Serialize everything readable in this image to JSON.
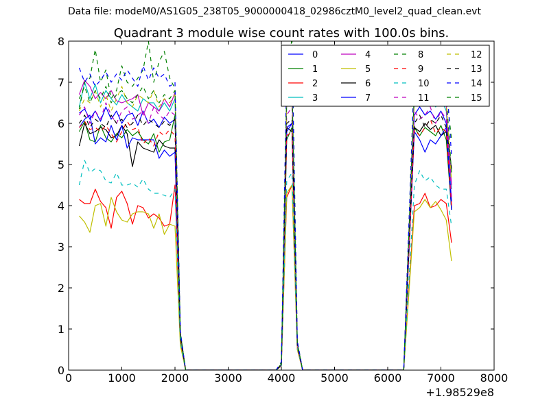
{
  "figure": {
    "suptitle": "Data file: modeM0/AS1G05_238T05_9000000418_02986cztM0_level2_quad_clean.evt"
  },
  "chart_data": {
    "type": "line",
    "title": "Quadrant 3 module wise count rates with 100.0s bins.",
    "xlabel": "",
    "ylabel": "",
    "x_offset_label": "+1.98529e8",
    "xlim": [
      0,
      8000
    ],
    "ylim": [
      0,
      8
    ],
    "xticks": [
      "0",
      "1000",
      "2000",
      "3000",
      "4000",
      "5000",
      "6000",
      "7000",
      "8000"
    ],
    "yticks": [
      "0",
      "1",
      "2",
      "3",
      "4",
      "5",
      "6",
      "7",
      "8"
    ],
    "grid": false,
    "legend": {
      "placement": "top-right",
      "columns": 4
    },
    "x": [
      200,
      300,
      400,
      500,
      600,
      700,
      800,
      900,
      1000,
      1100,
      1200,
      1300,
      1400,
      1500,
      1600,
      1700,
      1800,
      1900,
      2000,
      2100,
      2200,
      2300,
      2400,
      2500,
      2600,
      2700,
      2800,
      2900,
      3000,
      3100,
      3200,
      3300,
      3400,
      3500,
      3600,
      3700,
      3800,
      3900,
      4000,
      4100,
      4200,
      4300,
      4400,
      4500,
      4600,
      4700,
      4800,
      4900,
      5000,
      5100,
      5200,
      5300,
      5400,
      5500,
      5600,
      5700,
      5800,
      5900,
      6000,
      6100,
      6200,
      6300,
      6400,
      6500,
      6600,
      6700,
      6800,
      6900,
      7000,
      7100,
      7200
    ],
    "series": [
      {
        "name": "0",
        "color": "#0000ff",
        "dash": "solid",
        "values": [
          6.25,
          6.35,
          6.1,
          6.3,
          6.05,
          6.4,
          6.1,
          6.3,
          6.0,
          6.2,
          6.25,
          5.95,
          6.3,
          6.0,
          6.1,
          5.9,
          6.15,
          6.0,
          6.1,
          0.8,
          0,
          0,
          0,
          0,
          0,
          0,
          0,
          0,
          0,
          0,
          0,
          0,
          0,
          0,
          0,
          0,
          0,
          0,
          0.15,
          5.9,
          6.0,
          0.6,
          0,
          0,
          0,
          0,
          0,
          0,
          0,
          0,
          0,
          0,
          0,
          0,
          0,
          0,
          0,
          0,
          0,
          0,
          0,
          0,
          3.0,
          6.2,
          6.4,
          6.2,
          6.3,
          6.1,
          6.3,
          6.0,
          4.1
        ]
      },
      {
        "name": "1",
        "color": "#008000",
        "dash": "solid",
        "values": [
          5.8,
          6.05,
          5.6,
          5.55,
          5.95,
          5.65,
          5.55,
          5.75,
          5.65,
          5.85,
          5.7,
          5.8,
          5.6,
          5.5,
          5.75,
          5.3,
          5.55,
          5.6,
          6.2,
          0.9,
          0,
          0,
          0,
          0,
          0,
          0,
          0,
          0,
          0,
          0,
          0,
          0,
          0,
          0,
          0,
          0,
          0,
          0,
          0.12,
          5.6,
          5.9,
          0.6,
          0,
          0,
          0,
          0,
          0,
          0,
          0,
          0,
          0,
          0,
          0,
          0,
          0,
          0,
          0,
          0,
          0,
          0,
          0,
          0,
          2.9,
          5.9,
          5.7,
          5.9,
          5.8,
          5.7,
          5.95,
          5.6,
          3.9
        ]
      },
      {
        "name": "2",
        "color": "#ff0000",
        "dash": "solid",
        "values": [
          4.15,
          4.05,
          4.05,
          4.4,
          4.1,
          3.95,
          3.45,
          4.2,
          4.35,
          4.05,
          3.55,
          4.0,
          3.95,
          3.7,
          3.8,
          3.7,
          3.5,
          3.55,
          4.5,
          0.7,
          0,
          0,
          0,
          0,
          0,
          0,
          0,
          0,
          0,
          0,
          0,
          0,
          0,
          0,
          0,
          0,
          0,
          0,
          0.1,
          4.2,
          4.5,
          0.5,
          0,
          0,
          0,
          0,
          0,
          0,
          0,
          0,
          0,
          0,
          0,
          0,
          0,
          0,
          0,
          0,
          0,
          0,
          0,
          0,
          2.0,
          4.0,
          4.05,
          4.3,
          3.95,
          4.0,
          4.15,
          4.05,
          3.1
        ]
      },
      {
        "name": "3",
        "color": "#00bfbf",
        "dash": "solid",
        "values": [
          6.4,
          7.0,
          6.6,
          6.95,
          6.5,
          6.8,
          6.6,
          6.45,
          6.7,
          6.5,
          6.4,
          6.3,
          6.6,
          6.5,
          6.5,
          6.3,
          6.5,
          6.3,
          6.6,
          0.9,
          0,
          0,
          0,
          0,
          0,
          0,
          0,
          0,
          0,
          0,
          0,
          0,
          0,
          0,
          0,
          0,
          0,
          0,
          0.15,
          6.5,
          6.7,
          0.65,
          0,
          0,
          0,
          0,
          0,
          0,
          0,
          0,
          0,
          0,
          0,
          0,
          0,
          0,
          0,
          0,
          0,
          0,
          0,
          0,
          3.3,
          6.6,
          6.8,
          6.5,
          6.6,
          6.4,
          6.6,
          6.3,
          4.4
        ]
      },
      {
        "name": "4",
        "color": "#bf00bf",
        "dash": "solid",
        "values": [
          6.7,
          7.05,
          6.9,
          6.6,
          6.75,
          6.6,
          6.8,
          6.55,
          6.5,
          6.55,
          6.6,
          6.7,
          6.2,
          6.5,
          6.4,
          6.3,
          6.6,
          6.4,
          6.75,
          0.9,
          0,
          0,
          0,
          0,
          0,
          0,
          0,
          0,
          0,
          0,
          0,
          0,
          0,
          0,
          0,
          0,
          0,
          0,
          0.15,
          6.6,
          6.8,
          0.65,
          0,
          0,
          0,
          0,
          0,
          0,
          0,
          0,
          0,
          0,
          0,
          0,
          0,
          0,
          0,
          0,
          0,
          0,
          0,
          0,
          3.4,
          6.7,
          6.6,
          6.8,
          6.6,
          6.5,
          6.7,
          6.4,
          4.5
        ]
      },
      {
        "name": "5",
        "color": "#bfbf00",
        "dash": "solid",
        "values": [
          3.75,
          3.6,
          3.35,
          4.0,
          4.05,
          3.5,
          4.2,
          3.85,
          3.65,
          3.6,
          3.8,
          3.85,
          3.85,
          3.8,
          3.45,
          3.8,
          3.3,
          3.55,
          3.5,
          0.6,
          0,
          0,
          0,
          0,
          0,
          0,
          0,
          0,
          0,
          0,
          0,
          0,
          0,
          0,
          0,
          0,
          0,
          0,
          0.1,
          4.3,
          4.5,
          0.5,
          0,
          0,
          0,
          0,
          0,
          0,
          0,
          0,
          0,
          0,
          0,
          0,
          0,
          0,
          0,
          0,
          0,
          0,
          0,
          0,
          1.9,
          3.85,
          3.95,
          4.15,
          3.95,
          4.1,
          3.9,
          3.65,
          2.65
        ]
      },
      {
        "name": "6",
        "color": "#000000",
        "dash": "solid",
        "values": [
          5.45,
          6.0,
          5.75,
          5.8,
          5.9,
          5.85,
          5.65,
          5.7,
          5.95,
          5.75,
          4.95,
          5.55,
          5.4,
          5.35,
          5.3,
          5.6,
          5.45,
          5.4,
          5.4,
          0.8,
          0,
          0,
          0,
          0,
          0,
          0,
          0,
          0,
          0,
          0,
          0,
          0,
          0,
          0,
          0,
          0,
          0,
          0,
          0.12,
          5.9,
          5.8,
          0.6,
          0,
          0,
          0,
          0,
          0,
          0,
          0,
          0,
          0,
          0,
          0,
          0,
          0,
          0,
          0,
          0,
          0,
          0,
          0,
          0,
          3.0,
          5.9,
          5.8,
          6.0,
          5.85,
          5.95,
          5.7,
          5.8,
          3.9
        ]
      },
      {
        "name": "7",
        "color": "#0000ff",
        "dash": "solid",
        "values": [
          5.9,
          6.1,
          6.2,
          5.5,
          5.65,
          5.55,
          5.95,
          5.6,
          5.95,
          5.4,
          5.65,
          5.6,
          5.6,
          5.6,
          5.6,
          5.15,
          5.35,
          5.2,
          5.3,
          0.8,
          0,
          0,
          0,
          0,
          0,
          0,
          0,
          0,
          0,
          0,
          0,
          0,
          0,
          0,
          0,
          0,
          0,
          0,
          0.12,
          5.8,
          6.0,
          0.6,
          0,
          0,
          0,
          0,
          0,
          0,
          0,
          0,
          0,
          0,
          0,
          0,
          0,
          0,
          0,
          0,
          0,
          0,
          0,
          0,
          2.9,
          5.8,
          5.6,
          5.3,
          5.6,
          5.5,
          5.7,
          5.9,
          3.9
        ]
      },
      {
        "name": "8",
        "color": "#008000",
        "dash": "dashed",
        "values": [
          6.35,
          7.0,
          7.1,
          7.8,
          7.0,
          7.3,
          6.6,
          6.8,
          7.4,
          7.0,
          6.9,
          7.1,
          7.3,
          8.0,
          7.0,
          7.5,
          7.75,
          7.1,
          6.85,
          0.9,
          0,
          0,
          0,
          0,
          0,
          0,
          0,
          0,
          0,
          0,
          0,
          0,
          0,
          0,
          0,
          0,
          0,
          0,
          0.2,
          7.0,
          8.1,
          0.7,
          0,
          0,
          0,
          0,
          0,
          0,
          0,
          0,
          0,
          0,
          0,
          0,
          0,
          0,
          0,
          0,
          0,
          0,
          0,
          0,
          3.6,
          7.4,
          7.0,
          7.2,
          6.8,
          6.9,
          7.1,
          6.8,
          5.6
        ]
      },
      {
        "name": "9",
        "color": "#ff0000",
        "dash": "dashed",
        "values": [
          5.9,
          6.05,
          5.85,
          5.9,
          5.8,
          5.95,
          5.75,
          5.55,
          5.8,
          6.05,
          5.85,
          5.9,
          5.5,
          5.65,
          5.45,
          5.8,
          5.7,
          5.85,
          5.7,
          0.8,
          0,
          0,
          0,
          0,
          0,
          0,
          0,
          0,
          0,
          0,
          0,
          0,
          0,
          0,
          0,
          0,
          0,
          0,
          0.12,
          5.7,
          5.8,
          0.6,
          0,
          0,
          0,
          0,
          0,
          0,
          0,
          0,
          0,
          0,
          0,
          0,
          0,
          0,
          0,
          0,
          0,
          0,
          0,
          0,
          2.9,
          5.85,
          5.7,
          5.9,
          6.1,
          5.75,
          5.9,
          5.8,
          4.0
        ]
      },
      {
        "name": "10",
        "color": "#00bfbf",
        "dash": "dashed",
        "values": [
          4.5,
          5.1,
          4.8,
          4.9,
          4.85,
          4.6,
          4.55,
          4.8,
          4.5,
          4.5,
          4.55,
          4.45,
          4.65,
          4.4,
          4.3,
          4.3,
          4.25,
          4.2,
          4.4,
          0.7,
          0,
          0,
          0,
          0,
          0,
          0,
          0,
          0,
          0,
          0,
          0,
          0,
          0,
          0,
          0,
          0,
          0,
          0,
          0.1,
          4.6,
          4.8,
          0.55,
          0,
          0,
          0,
          0,
          0,
          0,
          0,
          0,
          0,
          0,
          0,
          0,
          0,
          0,
          0,
          0,
          0,
          0,
          0,
          0,
          2.2,
          4.5,
          4.85,
          4.6,
          4.7,
          4.5,
          4.4,
          4.4,
          3.5
        ]
      },
      {
        "name": "11",
        "color": "#bf00bf",
        "dash": "dashed",
        "values": [
          6.2,
          6.4,
          6.0,
          6.3,
          6.1,
          6.5,
          6.2,
          6.0,
          6.3,
          6.4,
          6.1,
          6.2,
          6.3,
          6.0,
          6.4,
          6.2,
          6.1,
          6.3,
          6.2,
          0.85,
          0,
          0,
          0,
          0,
          0,
          0,
          0,
          0,
          0,
          0,
          0,
          0,
          0,
          0,
          0,
          0,
          0,
          0,
          0.14,
          6.2,
          6.4,
          0.6,
          0,
          0,
          0,
          0,
          0,
          0,
          0,
          0,
          0,
          0,
          0,
          0,
          0,
          0,
          0,
          0,
          0,
          0,
          0,
          0,
          3.1,
          6.3,
          6.1,
          6.2,
          6.4,
          6.0,
          6.3,
          6.1,
          4.2
        ]
      },
      {
        "name": "12",
        "color": "#bfbf00",
        "dash": "dashed",
        "values": [
          6.3,
          6.6,
          6.5,
          6.8,
          6.4,
          6.7,
          6.3,
          6.6,
          6.9,
          6.5,
          6.4,
          6.7,
          6.6,
          6.5,
          6.8,
          6.4,
          6.6,
          6.5,
          6.7,
          0.9,
          0,
          0,
          0,
          0,
          0,
          0,
          0,
          0,
          0,
          0,
          0,
          0,
          0,
          0,
          0,
          0,
          0,
          0,
          0.15,
          6.5,
          6.8,
          0.65,
          0,
          0,
          0,
          0,
          0,
          0,
          0,
          0,
          0,
          0,
          0,
          0,
          0,
          0,
          0,
          0,
          0,
          0,
          0,
          0,
          3.3,
          6.6,
          6.7,
          6.5,
          6.8,
          6.6,
          6.7,
          6.5,
          4.6
        ]
      },
      {
        "name": "13",
        "color": "#000000",
        "dash": "dashed",
        "values": [
          6.0,
          6.2,
          5.9,
          6.1,
          6.0,
          5.9,
          6.2,
          6.0,
          6.1,
          5.9,
          6.0,
          6.2,
          5.95,
          6.1,
          6.0,
          5.9,
          6.05,
          5.95,
          6.1,
          0.85,
          0,
          0,
          0,
          0,
          0,
          0,
          0,
          0,
          0,
          0,
          0,
          0,
          0,
          0,
          0,
          0,
          0,
          0,
          0.13,
          6.0,
          6.1,
          0.6,
          0,
          0,
          0,
          0,
          0,
          0,
          0,
          0,
          0,
          0,
          0,
          0,
          0,
          0,
          0,
          0,
          0,
          0,
          0,
          0,
          3.0,
          6.0,
          6.2,
          5.9,
          6.1,
          6.0,
          6.2,
          5.9,
          4.9
        ]
      },
      {
        "name": "14",
        "color": "#0000ff",
        "dash": "dashed",
        "values": [
          7.35,
          7.0,
          7.2,
          6.9,
          7.05,
          7.25,
          7.0,
          7.2,
          7.05,
          7.3,
          7.1,
          6.9,
          7.4,
          7.05,
          7.35,
          7.1,
          7.2,
          6.9,
          7.0,
          0.95,
          0,
          0,
          0,
          0,
          0,
          0,
          0,
          0,
          0,
          0,
          0,
          0,
          0,
          0,
          0,
          0,
          0,
          0,
          0.2,
          7.3,
          7.7,
          0.7,
          0,
          0,
          0,
          0,
          0,
          0,
          0,
          0,
          0,
          0,
          0,
          0,
          0,
          0,
          0,
          0,
          0,
          0,
          0,
          0,
          3.6,
          7.2,
          7.0,
          7.35,
          7.1,
          7.25,
          7.0,
          7.2,
          5.2
        ]
      },
      {
        "name": "15",
        "color": "#008000",
        "dash": "dashed",
        "values": [
          6.6,
          6.9,
          6.5,
          6.8,
          6.6,
          6.9,
          6.5,
          6.7,
          6.8,
          6.6,
          6.5,
          6.7,
          6.9,
          6.6,
          6.8,
          6.5,
          6.7,
          6.6,
          6.8,
          0.9,
          0,
          0,
          0,
          0,
          0,
          0,
          0,
          0,
          0,
          0,
          0,
          0,
          0,
          0,
          0,
          0,
          0,
          0,
          0.15,
          6.8,
          7.0,
          0.65,
          0,
          0,
          0,
          0,
          0,
          0,
          0,
          0,
          0,
          0,
          0,
          0,
          0,
          0,
          0,
          0,
          0,
          0,
          0,
          0,
          3.4,
          6.8,
          6.6,
          6.9,
          6.7,
          6.8,
          6.6,
          6.7,
          4.8
        ]
      }
    ]
  }
}
